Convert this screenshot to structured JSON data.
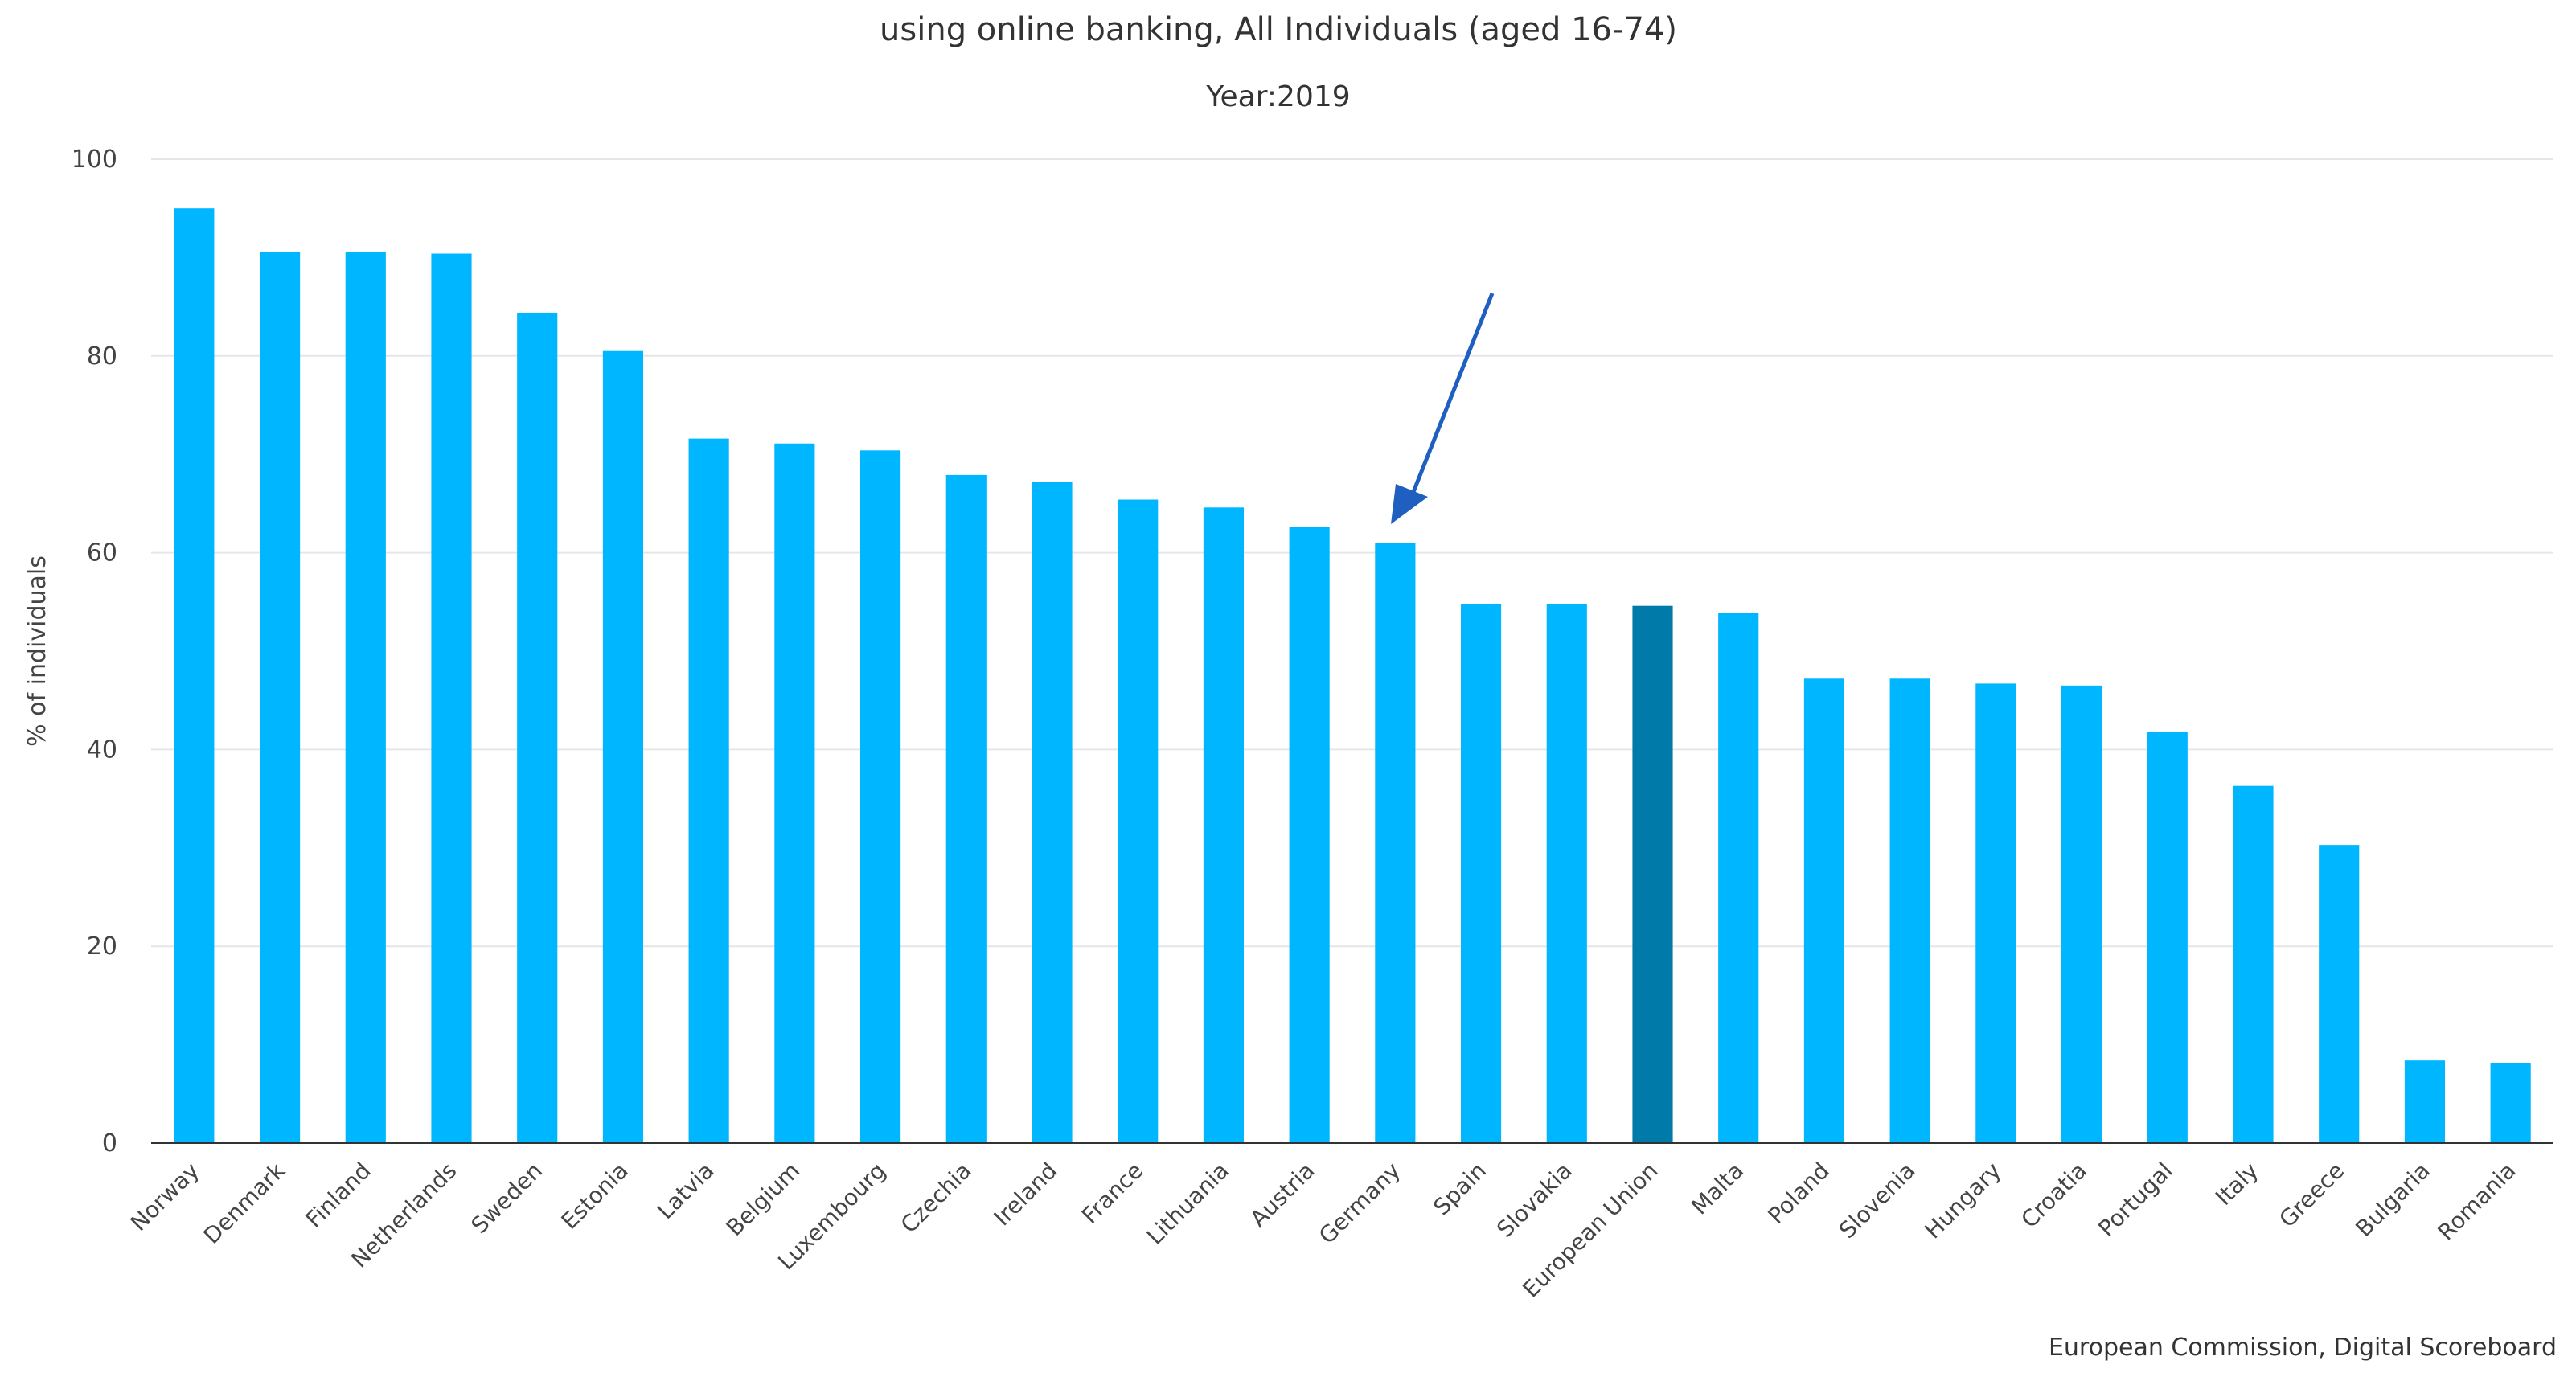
{
  "chart_data": {
    "type": "bar",
    "title": "using online banking, All Individuals (aged 16-74)",
    "subtitle": "Year:2019",
    "xlabel": "",
    "ylabel": "% of individuals",
    "ylim": [
      0,
      100
    ],
    "yticks": [
      0,
      20,
      40,
      60,
      80,
      100
    ],
    "grid": true,
    "legend": "none",
    "categories": [
      "Norway",
      "Denmark",
      "Finland",
      "Netherlands",
      "Sweden",
      "Estonia",
      "Latvia",
      "Belgium",
      "Luxembourg",
      "Czechia",
      "Ireland",
      "France",
      "Lithuania",
      "Austria",
      "Germany",
      "Spain",
      "Slovakia",
      "European Union",
      "Malta",
      "Poland",
      "Slovenia",
      "Hungary",
      "Croatia",
      "Portugal",
      "Italy",
      "Greece",
      "Bulgaria",
      "Romania"
    ],
    "values": [
      95,
      90.6,
      90.6,
      90.4,
      84.4,
      80.5,
      71.6,
      71.1,
      70.4,
      67.9,
      67.2,
      65.4,
      64.6,
      62.6,
      61,
      54.8,
      54.8,
      54.6,
      53.9,
      47.2,
      47.2,
      46.7,
      46.5,
      41.8,
      36.3,
      30.3,
      8.4,
      8.1
    ],
    "highlight_category": "European Union",
    "colors": {
      "bar": "#00b7ff",
      "highlight": "#007aa8",
      "grid": "#e6e6e6",
      "arrow": "#1f5fbf"
    },
    "annotation": {
      "type": "arrow",
      "target": "Germany"
    },
    "source": "European Commission, Digital Scoreboard"
  }
}
